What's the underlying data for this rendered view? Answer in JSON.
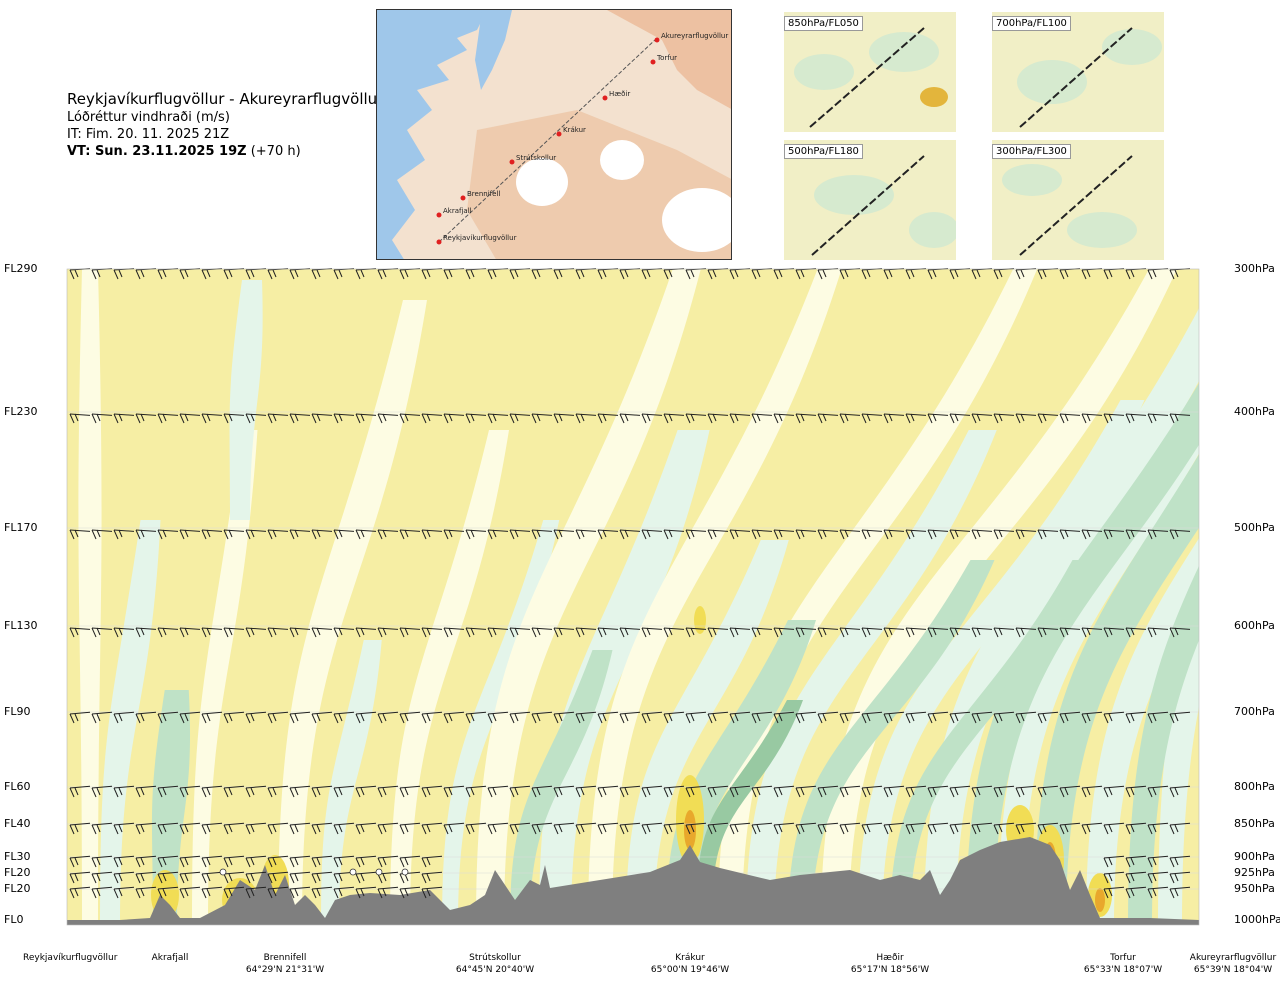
{
  "title": {
    "route": "Reykjavíkurflugvöllur - Akureyrarflugvöllur",
    "variable": "Lóðréttur vindhraði (m/s)",
    "issue_time": "IT: Fim. 20. 11. 2025 21Z",
    "valid_time": "VT: Sun. 23.11.2025 19Z",
    "lead_time": "(+70 h)"
  },
  "overview_map": {
    "waypoints": [
      "Akureyrarflugvöllur",
      "Torfur",
      "Hæðir",
      "Krákur",
      "Strútskollur",
      "Brennifell",
      "Akrafjall",
      "Reykjavíkurflugvöllur"
    ]
  },
  "level_panels": [
    {
      "label": "850hPa/FL050"
    },
    {
      "label": "700hPa/FL100"
    },
    {
      "label": "500hPa/FL180"
    },
    {
      "label": "300hPa/FL300"
    }
  ],
  "chart_data": {
    "type": "heatmap",
    "title": "Lóðréttur vindhraði (m/s)",
    "flight_levels": [
      "FL290",
      "FL230",
      "FL170",
      "FL130",
      "FL90",
      "FL60",
      "FL40",
      "FL30",
      "FL20",
      "FL20",
      "FL0"
    ],
    "pressure_levels": [
      "300hPa",
      "400hPa",
      "500hPa",
      "600hPa",
      "700hPa",
      "800hPa",
      "850hPa",
      "900hPa",
      "925hPa",
      "950hPa",
      "1000hPa"
    ],
    "locations": [
      {
        "name": "Reykjavíkurflugvöllur",
        "coords": ""
      },
      {
        "name": "Akrafjall",
        "coords": ""
      },
      {
        "name": "Brennifell",
        "coords": "64°29'N 21°31'W"
      },
      {
        "name": "Strútskollur",
        "coords": "64°45'N 20°40'W"
      },
      {
        "name": "Krákur",
        "coords": "65°00'N 19°46'W"
      },
      {
        "name": "Hæðir",
        "coords": "65°17'N 18°56'W"
      },
      {
        "name": "Torfur",
        "coords": "65°33'N 18°07'W"
      },
      {
        "name": "Akureyrarflugvöllur",
        "coords": "65°39'N 18°04'W"
      }
    ],
    "colors": {
      "updraft_weak": "#f6eea4",
      "updraft_mid": "#f1dd55",
      "updraft_strong": "#e8a82c",
      "updraft_max": "#e07a20",
      "neutral": "#fdfce3",
      "downdraft_weak": "#e4f5ea",
      "downdraft_mid": "#bfe2c7",
      "downdraft_strong": "#98c9a2",
      "terrain": "#7f7f7f"
    }
  }
}
